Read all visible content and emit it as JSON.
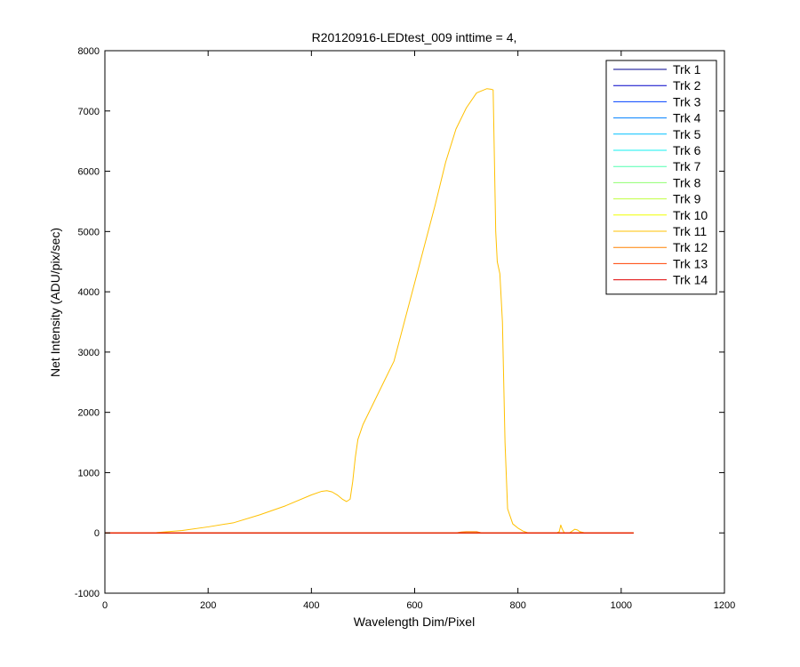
{
  "chart_data": {
    "type": "line",
    "title": "R20120916-LEDtest_009 inttime = 4,",
    "xlabel": "Wavelength Dim/Pixel",
    "ylabel": "Net Intensity (ADU/pix/sec)",
    "xlim": [
      0,
      1200
    ],
    "ylim": [
      -1000,
      8000
    ],
    "xticks": [
      0,
      200,
      400,
      600,
      800,
      1000,
      1200
    ],
    "yticks": [
      -1000,
      0,
      1000,
      2000,
      3000,
      4000,
      5000,
      6000,
      7000,
      8000
    ],
    "xtick_labels": [
      "0",
      "200",
      "400",
      "600",
      "800",
      "1000",
      "1200"
    ],
    "ytick_labels": [
      "-1000",
      "0",
      "1000",
      "2000",
      "3000",
      "4000",
      "5000",
      "6000",
      "7000",
      "8000"
    ],
    "grid": false,
    "legend_position": "top-right",
    "series": [
      {
        "name": "Trk 1",
        "color": "#00008f",
        "x": [
          0,
          1024
        ],
        "y": [
          0,
          0
        ]
      },
      {
        "name": "Trk 2",
        "color": "#0000c8",
        "x": [
          0,
          1024
        ],
        "y": [
          0,
          0
        ]
      },
      {
        "name": "Trk 3",
        "color": "#0040ff",
        "x": [
          0,
          1024
        ],
        "y": [
          0,
          0
        ]
      },
      {
        "name": "Trk 4",
        "color": "#0080ff",
        "x": [
          0,
          1024
        ],
        "y": [
          0,
          0
        ]
      },
      {
        "name": "Trk 5",
        "color": "#00c0ff",
        "x": [
          0,
          1024
        ],
        "y": [
          0,
          0
        ]
      },
      {
        "name": "Trk 6",
        "color": "#10f0f0",
        "x": [
          0,
          1024
        ],
        "y": [
          0,
          0
        ]
      },
      {
        "name": "Trk 7",
        "color": "#50ffb0",
        "x": [
          0,
          1024
        ],
        "y": [
          0,
          0
        ]
      },
      {
        "name": "Trk 8",
        "color": "#90ff70",
        "x": [
          0,
          1024
        ],
        "y": [
          0,
          0
        ]
      },
      {
        "name": "Trk 9",
        "color": "#c0ff40",
        "x": [
          0,
          1024
        ],
        "y": [
          0,
          0
        ]
      },
      {
        "name": "Trk 10",
        "color": "#f0ff00",
        "x": [
          0,
          1024
        ],
        "y": [
          0,
          0
        ]
      },
      {
        "name": "Trk 11",
        "color": "#ffc000",
        "x": [
          0,
          100,
          150,
          200,
          250,
          300,
          350,
          400,
          420,
          430,
          440,
          450,
          460,
          468,
          475,
          480,
          485,
          490,
          500,
          520,
          540,
          560,
          580,
          600,
          620,
          640,
          660,
          680,
          700,
          720,
          740,
          748,
          752,
          757,
          760,
          765,
          770,
          775,
          780,
          790,
          800,
          810,
          820,
          840,
          860,
          875,
          880,
          883,
          886,
          890,
          900,
          910,
          915,
          920,
          930,
          940,
          950,
          960,
          1000,
          1024
        ],
        "y": [
          0,
          5,
          40,
          100,
          170,
          300,
          450,
          630,
          690,
          700,
          680,
          630,
          560,
          520,
          560,
          850,
          1250,
          1550,
          1800,
          2150,
          2500,
          2850,
          3500,
          4150,
          4800,
          5450,
          6150,
          6700,
          7050,
          7300,
          7370,
          7360,
          7350,
          5000,
          4500,
          4300,
          3500,
          1500,
          400,
          150,
          80,
          30,
          0,
          0,
          0,
          0,
          20,
          130,
          60,
          0,
          0,
          60,
          50,
          20,
          0,
          0,
          0,
          0,
          0,
          0
        ]
      },
      {
        "name": "Trk 12",
        "color": "#ff8000",
        "x": [
          0,
          680,
          690,
          700,
          720,
          730,
          1024
        ],
        "y": [
          0,
          0,
          15,
          20,
          20,
          0,
          0
        ]
      },
      {
        "name": "Trk 13",
        "color": "#ff4000",
        "x": [
          0,
          1024
        ],
        "y": [
          0,
          0
        ]
      },
      {
        "name": "Trk 14",
        "color": "#e00000",
        "x": [
          0,
          1024
        ],
        "y": [
          0,
          0
        ]
      }
    ]
  }
}
